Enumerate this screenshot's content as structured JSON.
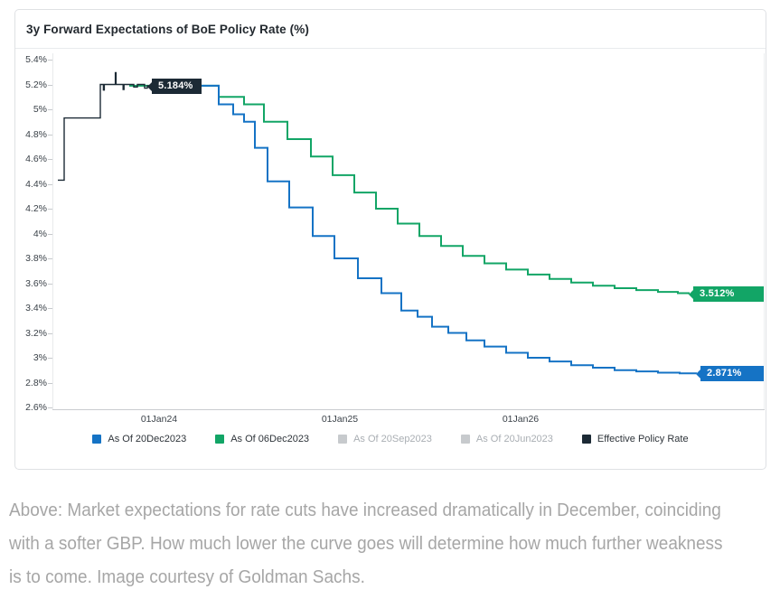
{
  "card": {
    "title": "3y Forward Expectations of BoE Policy Rate (%)"
  },
  "caption": {
    "lines": [
      "Above: Market expectations for rate cuts have increased dramatically in December, coinciding",
      "with a softer GBP. How much lower the curve goes will determine how much further weakness",
      "is to come. Image courtesy of Goldman Sachs."
    ]
  },
  "chart_data": {
    "type": "line",
    "subtype": "step",
    "title": "3y Forward Expectations of BoE Policy Rate (%)",
    "xlabel": "",
    "ylabel": "",
    "grid": false,
    "legend_position": "bottom",
    "ylim": [
      2.6,
      5.4
    ],
    "y_tick_step": 0.2,
    "y_ticks": [
      "5.4%",
      "5.2%",
      "5%",
      "4.8%",
      "4.6%",
      "4.4%",
      "4.2%",
      "4%",
      "3.8%",
      "3.6%",
      "3.4%",
      "3.2%",
      "3%",
      "2.8%",
      "2.6%"
    ],
    "xlim": [
      2023.41,
      2027.35
    ],
    "x_ticks": [
      {
        "label": "01Jan24",
        "t": 2024.0
      },
      {
        "label": "01Jan25",
        "t": 2025.0
      },
      {
        "label": "01Jan26",
        "t": 2026.0
      }
    ],
    "legend": [
      {
        "label": "As Of 20Dec2023",
        "color": "#1573c5",
        "enabled": true
      },
      {
        "label": "As Of 06Dec2023",
        "color": "#12a566",
        "enabled": true
      },
      {
        "label": "As Of 20Sep2023",
        "color": "#c7cacd",
        "enabled": false
      },
      {
        "label": "As Of 20Jun2023",
        "color": "#c7cacd",
        "enabled": false
      },
      {
        "label": "Effective Policy Rate",
        "color": "#1c2a35",
        "enabled": true
      }
    ],
    "series": [
      {
        "name": "As Of 06Dec2023",
        "color": "#12a566",
        "stroke_width": 2,
        "end_label": "3.512%",
        "label_style": "edge",
        "points": [
          [
            2023.835,
            5.19
          ],
          [
            2024.33,
            5.1
          ],
          [
            2024.47,
            5.04
          ],
          [
            2024.58,
            4.9
          ],
          [
            2024.71,
            4.76
          ],
          [
            2024.84,
            4.62
          ],
          [
            2024.96,
            4.47
          ],
          [
            2025.08,
            4.33
          ],
          [
            2025.2,
            4.2
          ],
          [
            2025.32,
            4.08
          ],
          [
            2025.44,
            3.98
          ],
          [
            2025.56,
            3.9
          ],
          [
            2025.68,
            3.82
          ],
          [
            2025.8,
            3.76
          ],
          [
            2025.92,
            3.71
          ],
          [
            2026.04,
            3.67
          ],
          [
            2026.16,
            3.635
          ],
          [
            2026.28,
            3.605
          ],
          [
            2026.4,
            3.58
          ],
          [
            2026.52,
            3.56
          ],
          [
            2026.64,
            3.545
          ],
          [
            2026.76,
            3.53
          ],
          [
            2026.87,
            3.52
          ],
          [
            2026.93,
            3.512
          ]
        ]
      },
      {
        "name": "As Of 20Dec2023",
        "color": "#1573c5",
        "stroke_width": 2,
        "end_label": "2.871%",
        "label_style": "edge",
        "points": [
          [
            2023.97,
            5.19
          ],
          [
            2024.33,
            5.04
          ],
          [
            2024.41,
            4.96
          ],
          [
            2024.47,
            4.9
          ],
          [
            2024.53,
            4.69
          ],
          [
            2024.6,
            4.42
          ],
          [
            2024.72,
            4.21
          ],
          [
            2024.85,
            3.98
          ],
          [
            2024.97,
            3.8
          ],
          [
            2025.1,
            3.64
          ],
          [
            2025.23,
            3.52
          ],
          [
            2025.34,
            3.38
          ],
          [
            2025.43,
            3.33
          ],
          [
            2025.51,
            3.25
          ],
          [
            2025.6,
            3.2
          ],
          [
            2025.7,
            3.14
          ],
          [
            2025.8,
            3.09
          ],
          [
            2025.92,
            3.04
          ],
          [
            2026.04,
            3.0
          ],
          [
            2026.16,
            2.97
          ],
          [
            2026.28,
            2.94
          ],
          [
            2026.4,
            2.92
          ],
          [
            2026.52,
            2.9
          ],
          [
            2026.64,
            2.89
          ],
          [
            2026.76,
            2.88
          ],
          [
            2026.88,
            2.874
          ],
          [
            2026.97,
            2.871
          ]
        ]
      },
      {
        "name": "Effective Policy Rate",
        "color": "#1c2a35",
        "stroke_width": 1.4,
        "end_label": "5.184%",
        "label_style": "inline",
        "points": [
          [
            2023.44,
            4.43
          ],
          [
            2023.475,
            4.93
          ],
          [
            2023.675,
            5.2
          ],
          [
            2023.688,
            5.2
          ],
          [
            2023.692,
            5.155
          ],
          [
            2023.697,
            5.2
          ],
          [
            2023.755,
            5.2
          ],
          [
            2023.758,
            5.295
          ],
          [
            2023.762,
            5.2
          ],
          [
            2023.798,
            5.2
          ],
          [
            2023.801,
            5.16
          ],
          [
            2023.806,
            5.2
          ],
          [
            2023.86,
            5.18
          ],
          [
            2023.88,
            5.2
          ],
          [
            2023.92,
            5.17
          ],
          [
            2023.935,
            5.19
          ],
          [
            2023.99,
            5.184
          ]
        ]
      }
    ]
  }
}
